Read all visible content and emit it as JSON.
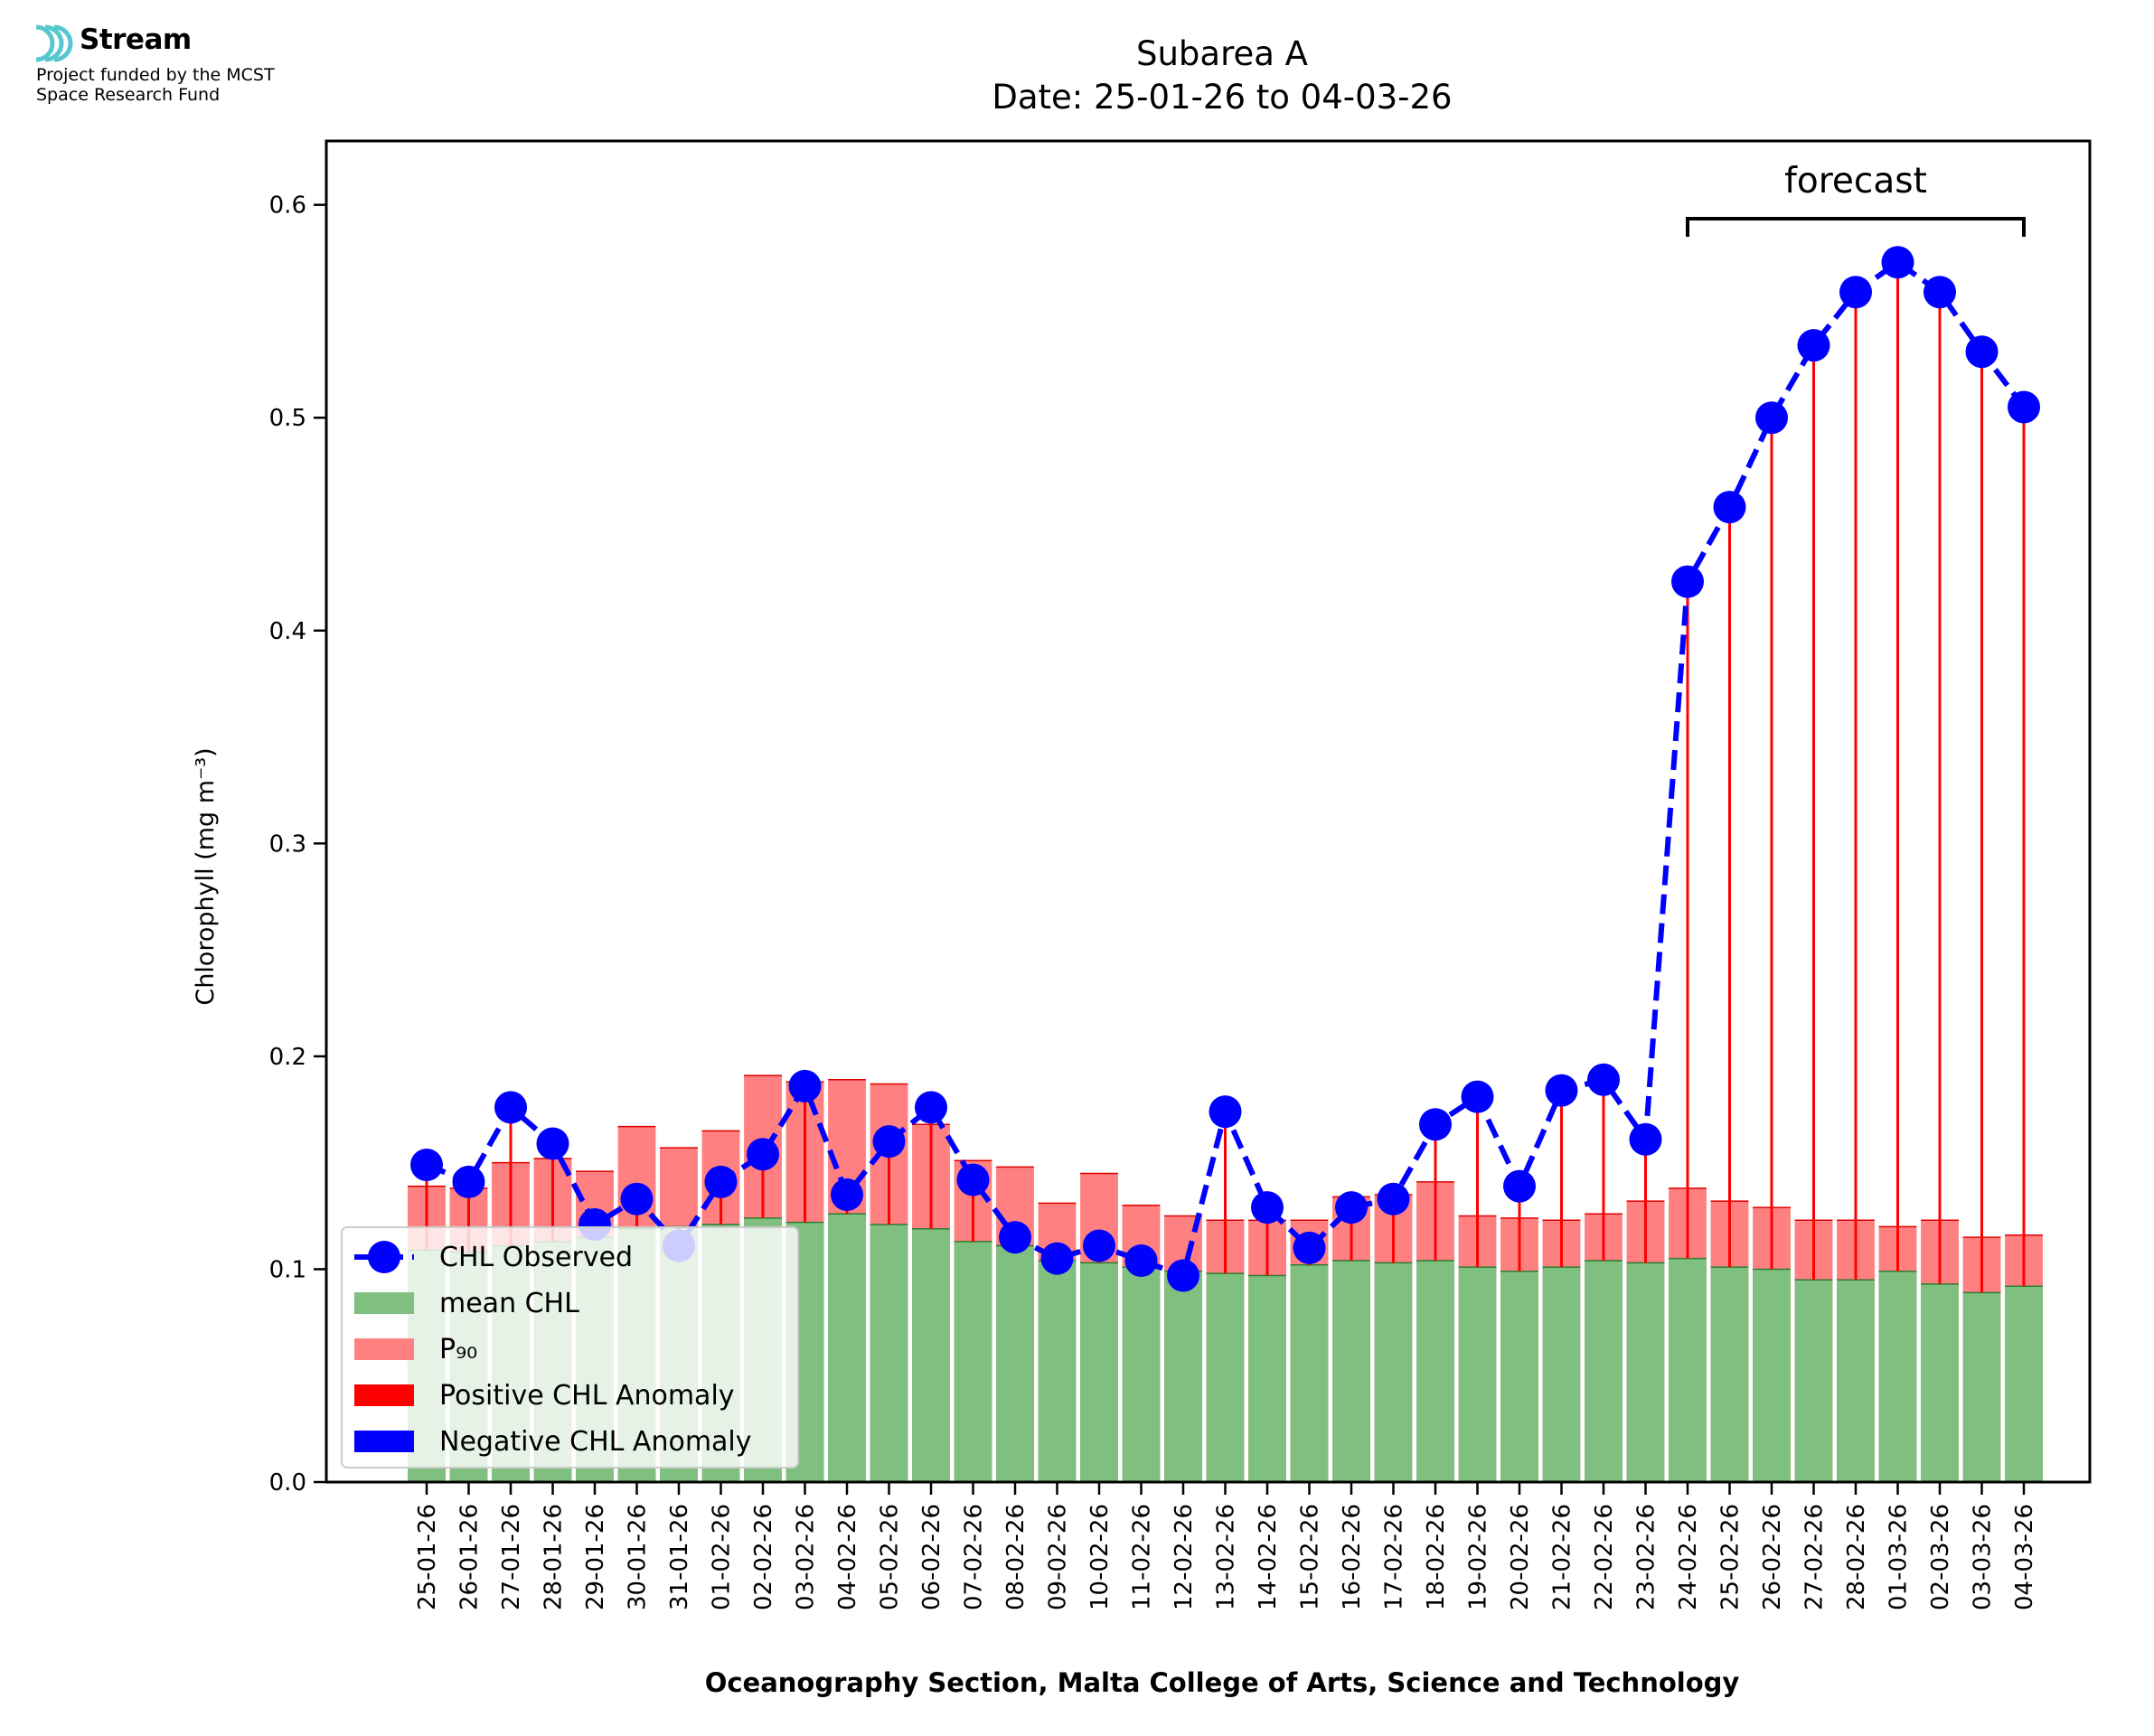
{
  "logo": {
    "name": "Stream",
    "line1": "Project funded by the MCST",
    "line2": "Space Research Fund",
    "accent": "#58c8d0"
  },
  "chart_data": {
    "type": "bar",
    "title": "Subarea A",
    "subtitle": "Date: 25-01-26 to 04-03-26",
    "xlabel": "Oceanography Section, Malta College of Arts, Science and Technology",
    "ylabel": "Chlorophyll (mg m⁻³)",
    "ylim": [
      0,
      0.63
    ],
    "yticks": [
      "0.0",
      "0.1",
      "0.2",
      "0.3",
      "0.4",
      "0.5",
      "0.6"
    ],
    "categories": [
      "25-01-26",
      "26-01-26",
      "27-01-26",
      "28-01-26",
      "29-01-26",
      "30-01-26",
      "31-01-26",
      "01-02-26",
      "02-02-26",
      "03-02-26",
      "04-02-26",
      "05-02-26",
      "06-02-26",
      "07-02-26",
      "08-02-26",
      "09-02-26",
      "10-02-26",
      "11-02-26",
      "12-02-26",
      "13-02-26",
      "14-02-26",
      "15-02-26",
      "16-02-26",
      "17-02-26",
      "18-02-26",
      "19-02-26",
      "20-02-26",
      "21-02-26",
      "22-02-26",
      "23-02-26",
      "24-02-26",
      "25-02-26",
      "26-02-26",
      "27-02-26",
      "28-02-26",
      "01-03-26",
      "02-03-26",
      "03-03-26",
      "04-03-26"
    ],
    "series": [
      {
        "name": "CHL Observed",
        "kind": "line",
        "style": "dashed",
        "color": "#0000ff",
        "values": [
          0.149,
          0.141,
          0.176,
          0.159,
          0.121,
          0.133,
          0.111,
          0.141,
          0.154,
          0.186,
          0.135,
          0.16,
          0.176,
          0.142,
          0.115,
          0.105,
          0.111,
          0.104,
          0.097,
          0.174,
          0.129,
          0.11,
          0.129,
          0.133,
          0.168,
          0.181,
          0.139,
          0.184,
          0.189,
          0.161,
          0.423,
          0.458,
          0.5,
          0.534,
          0.559,
          0.573,
          0.559,
          0.531,
          0.505
        ]
      },
      {
        "name": "mean CHL",
        "kind": "bar",
        "color": "#7fbf7f",
        "values": [
          0.109,
          0.108,
          0.111,
          0.113,
          0.115,
          0.119,
          0.12,
          0.121,
          0.124,
          0.122,
          0.126,
          0.121,
          0.119,
          0.113,
          0.111,
          0.104,
          0.103,
          0.101,
          0.099,
          0.098,
          0.097,
          0.102,
          0.104,
          0.103,
          0.104,
          0.101,
          0.099,
          0.101,
          0.104,
          0.103,
          0.105,
          0.101,
          0.1,
          0.095,
          0.095,
          0.099,
          0.093,
          0.089,
          0.092
        ]
      },
      {
        "name": "P₉₀",
        "kind": "bar",
        "color": "#ff8080",
        "values": [
          0.139,
          0.138,
          0.15,
          0.152,
          0.146,
          0.167,
          0.157,
          0.165,
          0.191,
          0.188,
          0.189,
          0.187,
          0.168,
          0.151,
          0.148,
          0.131,
          0.145,
          0.13,
          0.125,
          0.123,
          0.123,
          0.123,
          0.134,
          0.135,
          0.141,
          0.125,
          0.124,
          0.123,
          0.126,
          0.132,
          0.138,
          0.132,
          0.129,
          0.123,
          0.123,
          0.12,
          0.123,
          0.115,
          0.116
        ]
      },
      {
        "name": "Positive CHL Anomaly",
        "kind": "legend",
        "color": "#ff0000"
      },
      {
        "name": "Negative CHL Anomaly",
        "kind": "legend",
        "color": "#0000ff"
      }
    ],
    "annotation": {
      "text": "forecast",
      "from": "24-02-26",
      "to": "04-03-26"
    },
    "legend_position": "lower-left",
    "grid": false
  }
}
